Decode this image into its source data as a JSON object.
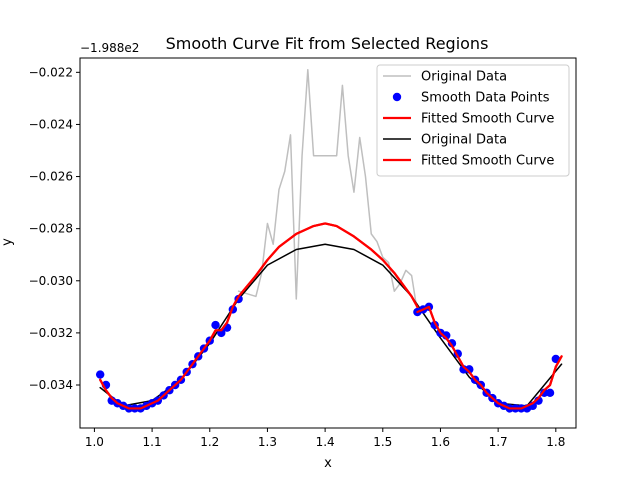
{
  "chart_data": {
    "type": "line",
    "title": "Smooth Curve Fit from Selected Regions",
    "xlabel": "x",
    "ylabel": "y",
    "offset_text": "−1.988e2",
    "xlim": [
      0.975,
      1.835
    ],
    "ylim": [
      -0.03565,
      -0.02145
    ],
    "x_ticks": [
      {
        "value": 1.0,
        "label": "1.0"
      },
      {
        "value": 1.1,
        "label": "1.1"
      },
      {
        "value": 1.2,
        "label": "1.2"
      },
      {
        "value": 1.3,
        "label": "1.3"
      },
      {
        "value": 1.4,
        "label": "1.4"
      },
      {
        "value": 1.5,
        "label": "1.5"
      },
      {
        "value": 1.6,
        "label": "1.6"
      },
      {
        "value": 1.7,
        "label": "1.7"
      },
      {
        "value": 1.8,
        "label": "1.8"
      }
    ],
    "y_ticks": [
      {
        "value": -0.034,
        "label": "−0.034"
      },
      {
        "value": -0.032,
        "label": "−0.032"
      },
      {
        "value": -0.03,
        "label": "−0.030"
      },
      {
        "value": -0.028,
        "label": "−0.028"
      },
      {
        "value": -0.026,
        "label": "−0.026"
      },
      {
        "value": -0.024,
        "label": "−0.024"
      },
      {
        "value": -0.022,
        "label": "−0.022"
      }
    ],
    "grid": false,
    "legend_position": "top-right",
    "legend": [
      {
        "label": "Original Data",
        "style": "line",
        "color": "#bfbfbf"
      },
      {
        "label": "Smooth Data Points",
        "style": "marker",
        "color": "#0000ff"
      },
      {
        "label": "Fitted Smooth Curve",
        "style": "line",
        "color": "#ff0000"
      },
      {
        "label": "Original Data",
        "style": "line",
        "color": "#000000"
      },
      {
        "label": "Fitted Smooth Curve",
        "style": "line",
        "color": "#ff0000"
      }
    ],
    "series": [
      {
        "name": "Original Data",
        "style": "line",
        "color": "#bfbfbf",
        "x": [
          1.25,
          1.28,
          1.29,
          1.3,
          1.31,
          1.32,
          1.33,
          1.34,
          1.35,
          1.36,
          1.37,
          1.38,
          1.39,
          1.4,
          1.41,
          1.42,
          1.43,
          1.44,
          1.45,
          1.46,
          1.47,
          1.48,
          1.49,
          1.5,
          1.51,
          1.52,
          1.53,
          1.54,
          1.55,
          1.56
        ],
        "y": [
          -0.0304,
          -0.0306,
          -0.0297,
          -0.0278,
          -0.0286,
          -0.0265,
          -0.0258,
          -0.0244,
          -0.0307,
          -0.0252,
          -0.0219,
          -0.0252,
          -0.0252,
          -0.0252,
          -0.0252,
          -0.0252,
          -0.0225,
          -0.0252,
          -0.0266,
          -0.0245,
          -0.026,
          -0.0282,
          -0.0285,
          -0.0291,
          -0.0293,
          -0.0304,
          -0.0301,
          -0.0296,
          -0.0298,
          -0.0312
        ]
      },
      {
        "name": "Smooth Data Points",
        "style": "marker",
        "color": "#0000ff",
        "x": [
          1.01,
          1.02,
          1.03,
          1.04,
          1.05,
          1.06,
          1.07,
          1.08,
          1.09,
          1.1,
          1.11,
          1.12,
          1.13,
          1.14,
          1.15,
          1.16,
          1.17,
          1.18,
          1.19,
          1.2,
          1.21,
          1.22,
          1.23,
          1.24,
          1.25,
          1.56,
          1.57,
          1.58,
          1.59,
          1.6,
          1.61,
          1.62,
          1.63,
          1.64,
          1.65,
          1.66,
          1.67,
          1.68,
          1.69,
          1.7,
          1.71,
          1.72,
          1.73,
          1.74,
          1.75,
          1.76,
          1.77,
          1.78,
          1.79,
          1.8
        ],
        "y": [
          -0.0336,
          -0.034,
          -0.0346,
          -0.0347,
          -0.0348,
          -0.0349,
          -0.0349,
          -0.0349,
          -0.0348,
          -0.0347,
          -0.0346,
          -0.0344,
          -0.0342,
          -0.034,
          -0.0338,
          -0.0335,
          -0.0332,
          -0.0329,
          -0.0326,
          -0.0323,
          -0.0317,
          -0.032,
          -0.0318,
          -0.0311,
          -0.0307,
          -0.0312,
          -0.0311,
          -0.031,
          -0.0317,
          -0.032,
          -0.0321,
          -0.0324,
          -0.0328,
          -0.0334,
          -0.0334,
          -0.0338,
          -0.034,
          -0.0343,
          -0.0345,
          -0.0347,
          -0.0348,
          -0.0349,
          -0.0349,
          -0.0349,
          -0.0349,
          -0.0348,
          -0.0346,
          -0.0343,
          -0.0343,
          -0.033
        ]
      },
      {
        "name": "Fitted Smooth Curve",
        "style": "line",
        "color": "#ff0000",
        "x": [
          1.01,
          1.02,
          1.03,
          1.04,
          1.05,
          1.06,
          1.07,
          1.08,
          1.09,
          1.1,
          1.11,
          1.12,
          1.13,
          1.14,
          1.15,
          1.16,
          1.17,
          1.18,
          1.19,
          1.2,
          1.21,
          1.22,
          1.23,
          1.24,
          1.25
        ],
        "y": [
          -0.0338,
          -0.0342,
          -0.0345,
          -0.0347,
          -0.0348,
          -0.0349,
          -0.0349,
          -0.0349,
          -0.0348,
          -0.0347,
          -0.0346,
          -0.0344,
          -0.0342,
          -0.034,
          -0.0338,
          -0.0335,
          -0.0332,
          -0.0329,
          -0.0326,
          -0.0323,
          -0.0319,
          -0.0319,
          -0.0316,
          -0.031,
          -0.0306
        ]
      },
      {
        "name": "Fitted Smooth Curve",
        "style": "line",
        "color": "#ff0000",
        "x": [
          1.56,
          1.57,
          1.58,
          1.59,
          1.6,
          1.61,
          1.62,
          1.63,
          1.64,
          1.65,
          1.66,
          1.67,
          1.68,
          1.69,
          1.7,
          1.71,
          1.72,
          1.73,
          1.74,
          1.75,
          1.76,
          1.77,
          1.78,
          1.79,
          1.8,
          1.81
        ],
        "y": [
          -0.0312,
          -0.0311,
          -0.031,
          -0.0316,
          -0.032,
          -0.0322,
          -0.0325,
          -0.0329,
          -0.0333,
          -0.0335,
          -0.0338,
          -0.034,
          -0.0343,
          -0.0345,
          -0.0347,
          -0.0348,
          -0.0349,
          -0.0349,
          -0.0349,
          -0.0348,
          -0.0347,
          -0.0345,
          -0.0342,
          -0.034,
          -0.0333,
          -0.0329
        ]
      },
      {
        "name": "Original Data",
        "style": "line",
        "color": "#000000",
        "x": [
          1.01,
          1.05,
          1.1,
          1.15,
          1.2,
          1.25,
          1.3,
          1.35,
          1.4,
          1.45,
          1.5,
          1.55,
          1.6,
          1.65,
          1.7,
          1.75,
          1.81
        ],
        "y": [
          -0.0341,
          -0.0348,
          -0.0346,
          -0.0338,
          -0.0324,
          -0.0307,
          -0.0294,
          -0.0288,
          -0.0286,
          -0.0288,
          -0.0294,
          -0.0306,
          -0.0322,
          -0.0337,
          -0.0347,
          -0.0348,
          -0.0332
        ]
      },
      {
        "name": "Fitted Smooth Curve",
        "style": "line",
        "color": "#ff0000",
        "x": [
          1.25,
          1.28,
          1.3,
          1.32,
          1.35,
          1.38,
          1.4,
          1.42,
          1.45,
          1.48,
          1.5,
          1.52,
          1.55,
          1.56
        ],
        "y": [
          -0.0306,
          -0.0298,
          -0.0292,
          -0.0287,
          -0.0282,
          -0.0279,
          -0.0278,
          -0.0279,
          -0.0283,
          -0.0288,
          -0.0292,
          -0.0297,
          -0.0306,
          -0.031
        ]
      }
    ]
  }
}
